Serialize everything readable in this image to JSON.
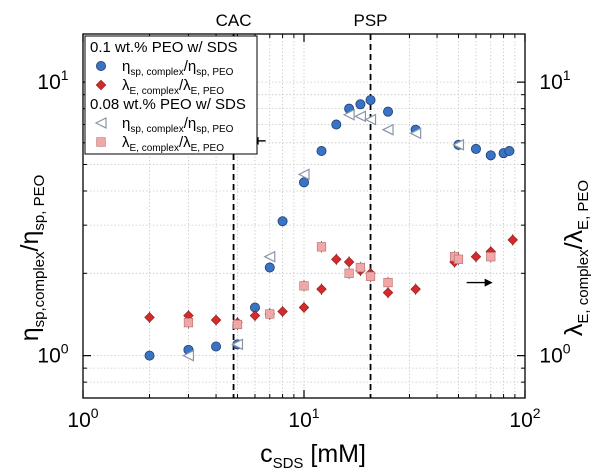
{
  "chart_data": {
    "type": "scatter",
    "xscale": "log",
    "yscale": "log",
    "xlim": [
      1,
      100
    ],
    "ylim": [
      0.7,
      15
    ],
    "grid": true,
    "legend_position": "top-left",
    "xlabel": {
      "main": "c",
      "sub": "SDS",
      "tail": " [mM]"
    },
    "ylabel_left": {
      "main": "η",
      "sub1": "sp,complex",
      "mid": "/η",
      "sub2": "sp, PEO"
    },
    "ylabel_right": {
      "main": "λ",
      "sub1": "E, complex",
      "mid": "/λ",
      "sub2": "E, PEO"
    },
    "x_ticks": [
      {
        "value": 1,
        "base": "10",
        "exp": "0"
      },
      {
        "value": 10,
        "base": "10",
        "exp": "1"
      },
      {
        "value": 100,
        "base": "10",
        "exp": "2"
      }
    ],
    "y_ticks": [
      {
        "value": 1,
        "base": "10",
        "exp": "0"
      },
      {
        "value": 10,
        "base": "10",
        "exp": "1"
      }
    ],
    "reference_lines": [
      {
        "label": "CAC",
        "x": 4.8
      },
      {
        "label": "PSP",
        "x": 20
      }
    ],
    "legend": [
      {
        "kind": "header",
        "text": "0.1 wt.% PEO w/ SDS"
      },
      {
        "kind": "series",
        "series": 0,
        "main": "η",
        "sub1": "sp, complex",
        "mid": "/η",
        "sub2": "sp, PEO"
      },
      {
        "kind": "series",
        "series": 1,
        "main": "λ",
        "sub1": "E, complex",
        "mid": "/λ",
        "sub2": "E, PEO"
      },
      {
        "kind": "header",
        "text": "0.08 wt.% PEO w/ SDS"
      },
      {
        "kind": "series",
        "series": 2,
        "main": "η",
        "sub1": "sp, complex",
        "mid": "/η",
        "sub2": "sp, PEO"
      },
      {
        "kind": "series",
        "series": 3,
        "main": "λ",
        "sub1": "E, complex",
        "mid": "/λ",
        "sub2": "E, PEO"
      }
    ],
    "series": [
      {
        "marker": "circle",
        "color": "#3a73c4",
        "axis": "left",
        "points": [
          [
            2,
            1.0
          ],
          [
            3,
            1.05
          ],
          [
            4,
            1.08
          ],
          [
            5,
            1.1
          ],
          [
            6,
            1.5
          ],
          [
            7,
            2.1
          ],
          [
            8,
            3.1
          ],
          [
            10,
            4.3
          ],
          [
            12,
            5.6
          ],
          [
            14,
            7.0
          ],
          [
            16,
            8.0
          ],
          [
            18,
            8.3
          ],
          [
            20,
            8.6
          ],
          [
            24,
            7.8
          ],
          [
            32,
            6.7
          ],
          [
            50,
            5.9
          ],
          [
            60,
            5.7
          ],
          [
            70,
            5.4
          ],
          [
            80,
            5.5
          ],
          [
            85,
            5.6
          ]
        ]
      },
      {
        "marker": "diamond",
        "color": "#d42a2a",
        "axis": "right",
        "points": [
          [
            2,
            1.38
          ],
          [
            3,
            1.4
          ],
          [
            4,
            1.35
          ],
          [
            5,
            1.32
          ],
          [
            6,
            1.4
          ],
          [
            7,
            1.42
          ],
          [
            8,
            1.45
          ],
          [
            10,
            1.5
          ],
          [
            12,
            1.75
          ],
          [
            14,
            2.25
          ],
          [
            16,
            2.2
          ],
          [
            18,
            2.05
          ],
          [
            20,
            2.0
          ],
          [
            24,
            1.7
          ],
          [
            32,
            1.75
          ],
          [
            48,
            2.2
          ],
          [
            60,
            2.3
          ],
          [
            70,
            2.4
          ],
          [
            88,
            2.65
          ]
        ]
      },
      {
        "marker": "triangle-left",
        "color": "#8a96a8",
        "axis": "left",
        "points": [
          [
            3,
            1.0
          ],
          [
            5,
            1.1
          ],
          [
            7,
            2.3
          ],
          [
            10,
            4.6
          ],
          [
            16,
            7.6
          ],
          [
            18,
            7.5
          ],
          [
            20,
            7.3
          ],
          [
            24,
            6.7
          ],
          [
            32,
            6.5
          ],
          [
            50,
            5.9
          ]
        ]
      },
      {
        "marker": "square",
        "color": "#f0a7a7",
        "axis": "right",
        "points": [
          [
            3,
            1.32
          ],
          [
            5,
            1.3
          ],
          [
            7,
            1.42
          ],
          [
            10,
            1.8
          ],
          [
            12,
            2.5
          ],
          [
            16,
            2.0
          ],
          [
            18,
            2.1
          ],
          [
            20,
            1.95
          ],
          [
            24,
            1.85
          ],
          [
            48,
            2.3
          ],
          [
            50,
            2.25
          ],
          [
            70,
            2.3
          ]
        ]
      }
    ],
    "arrows": [
      {
        "direction": "left",
        "x": 6.3,
        "y": 6.1
      },
      {
        "direction": "right",
        "x": 63,
        "y": 1.85
      }
    ]
  }
}
